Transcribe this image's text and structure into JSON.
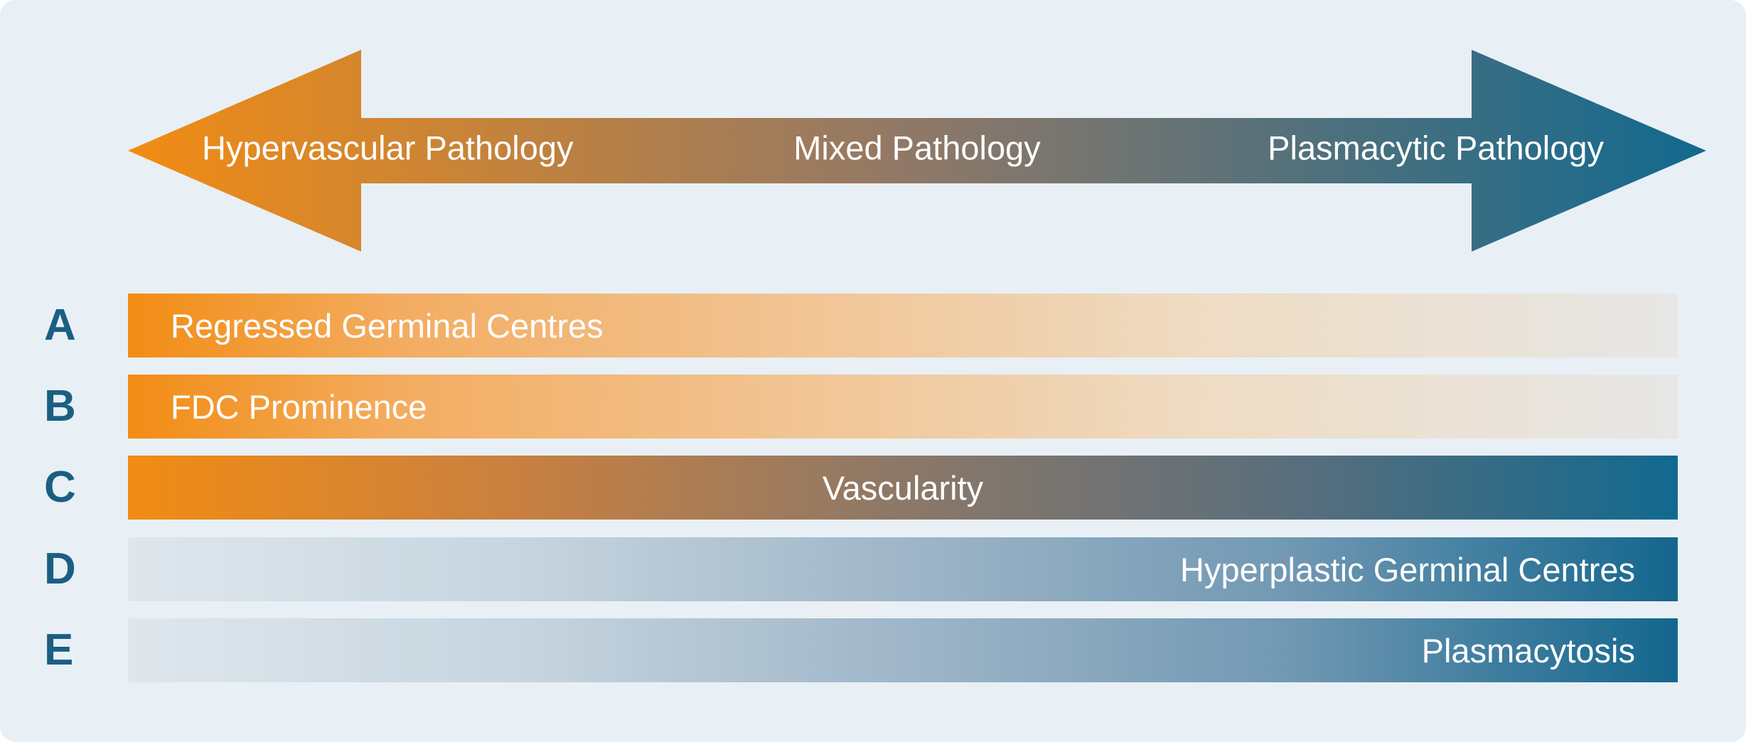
{
  "arrow": {
    "left_label": "Hypervascular Pathology",
    "center_label": "Mixed Pathology",
    "right_label": "Plasmacytic Pathology",
    "color_start": "#f28c14",
    "color_end": "#12698f"
  },
  "rows": [
    {
      "letter": "A",
      "label": "Regressed Germinal Centres",
      "gradient": "orange-fade",
      "align": "left"
    },
    {
      "letter": "B",
      "label": "FDC Prominence",
      "gradient": "orange-fade",
      "align": "left"
    },
    {
      "letter": "C",
      "label": "Vascularity",
      "gradient": "orange-blue",
      "align": "center"
    },
    {
      "letter": "D",
      "label": "Hyperplastic Germinal Centres",
      "gradient": "blue-fade",
      "align": "right"
    },
    {
      "letter": "E",
      "label": "Plasmacytosis",
      "gradient": "blue-fade",
      "align": "right"
    }
  ],
  "colors": {
    "background": "#e8f0f5",
    "letter_color": "#1a5f82",
    "label_color": "#ffffff"
  }
}
